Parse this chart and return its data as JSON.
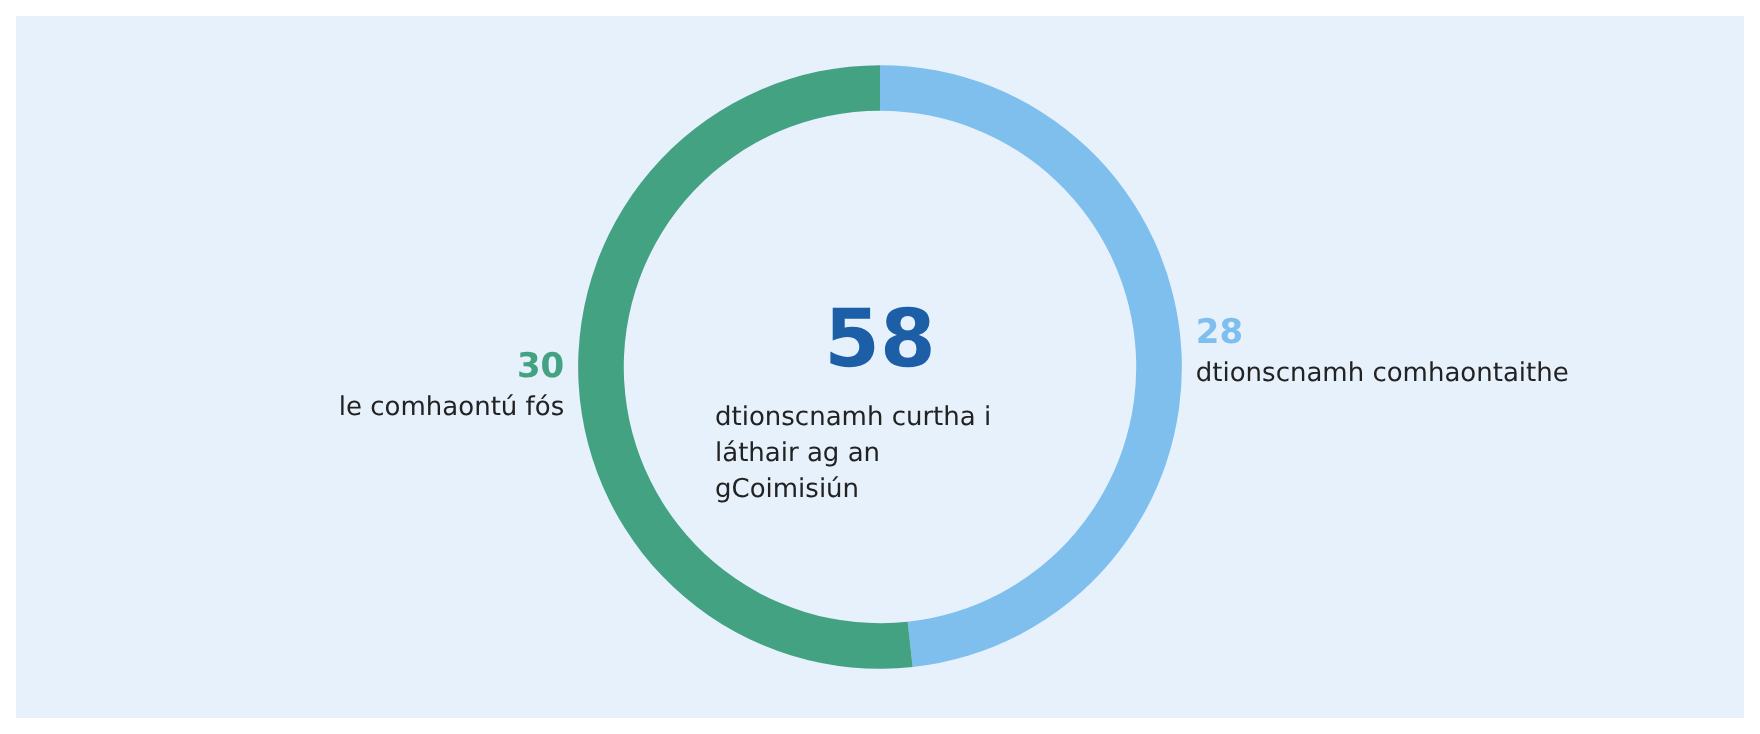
{
  "chart_data": {
    "type": "donut",
    "categories": [
      "dtionscnamh comhaontaithe",
      "le comhaontú fós"
    ],
    "values": [
      28,
      30
    ],
    "colors": [
      "#7fbfee",
      "#43a282"
    ],
    "data_labels": true,
    "annotations": [
      "58",
      "dtionscnamh curtha i láthair ag an gCoimisiún"
    ],
    "legend": false
  }
}
